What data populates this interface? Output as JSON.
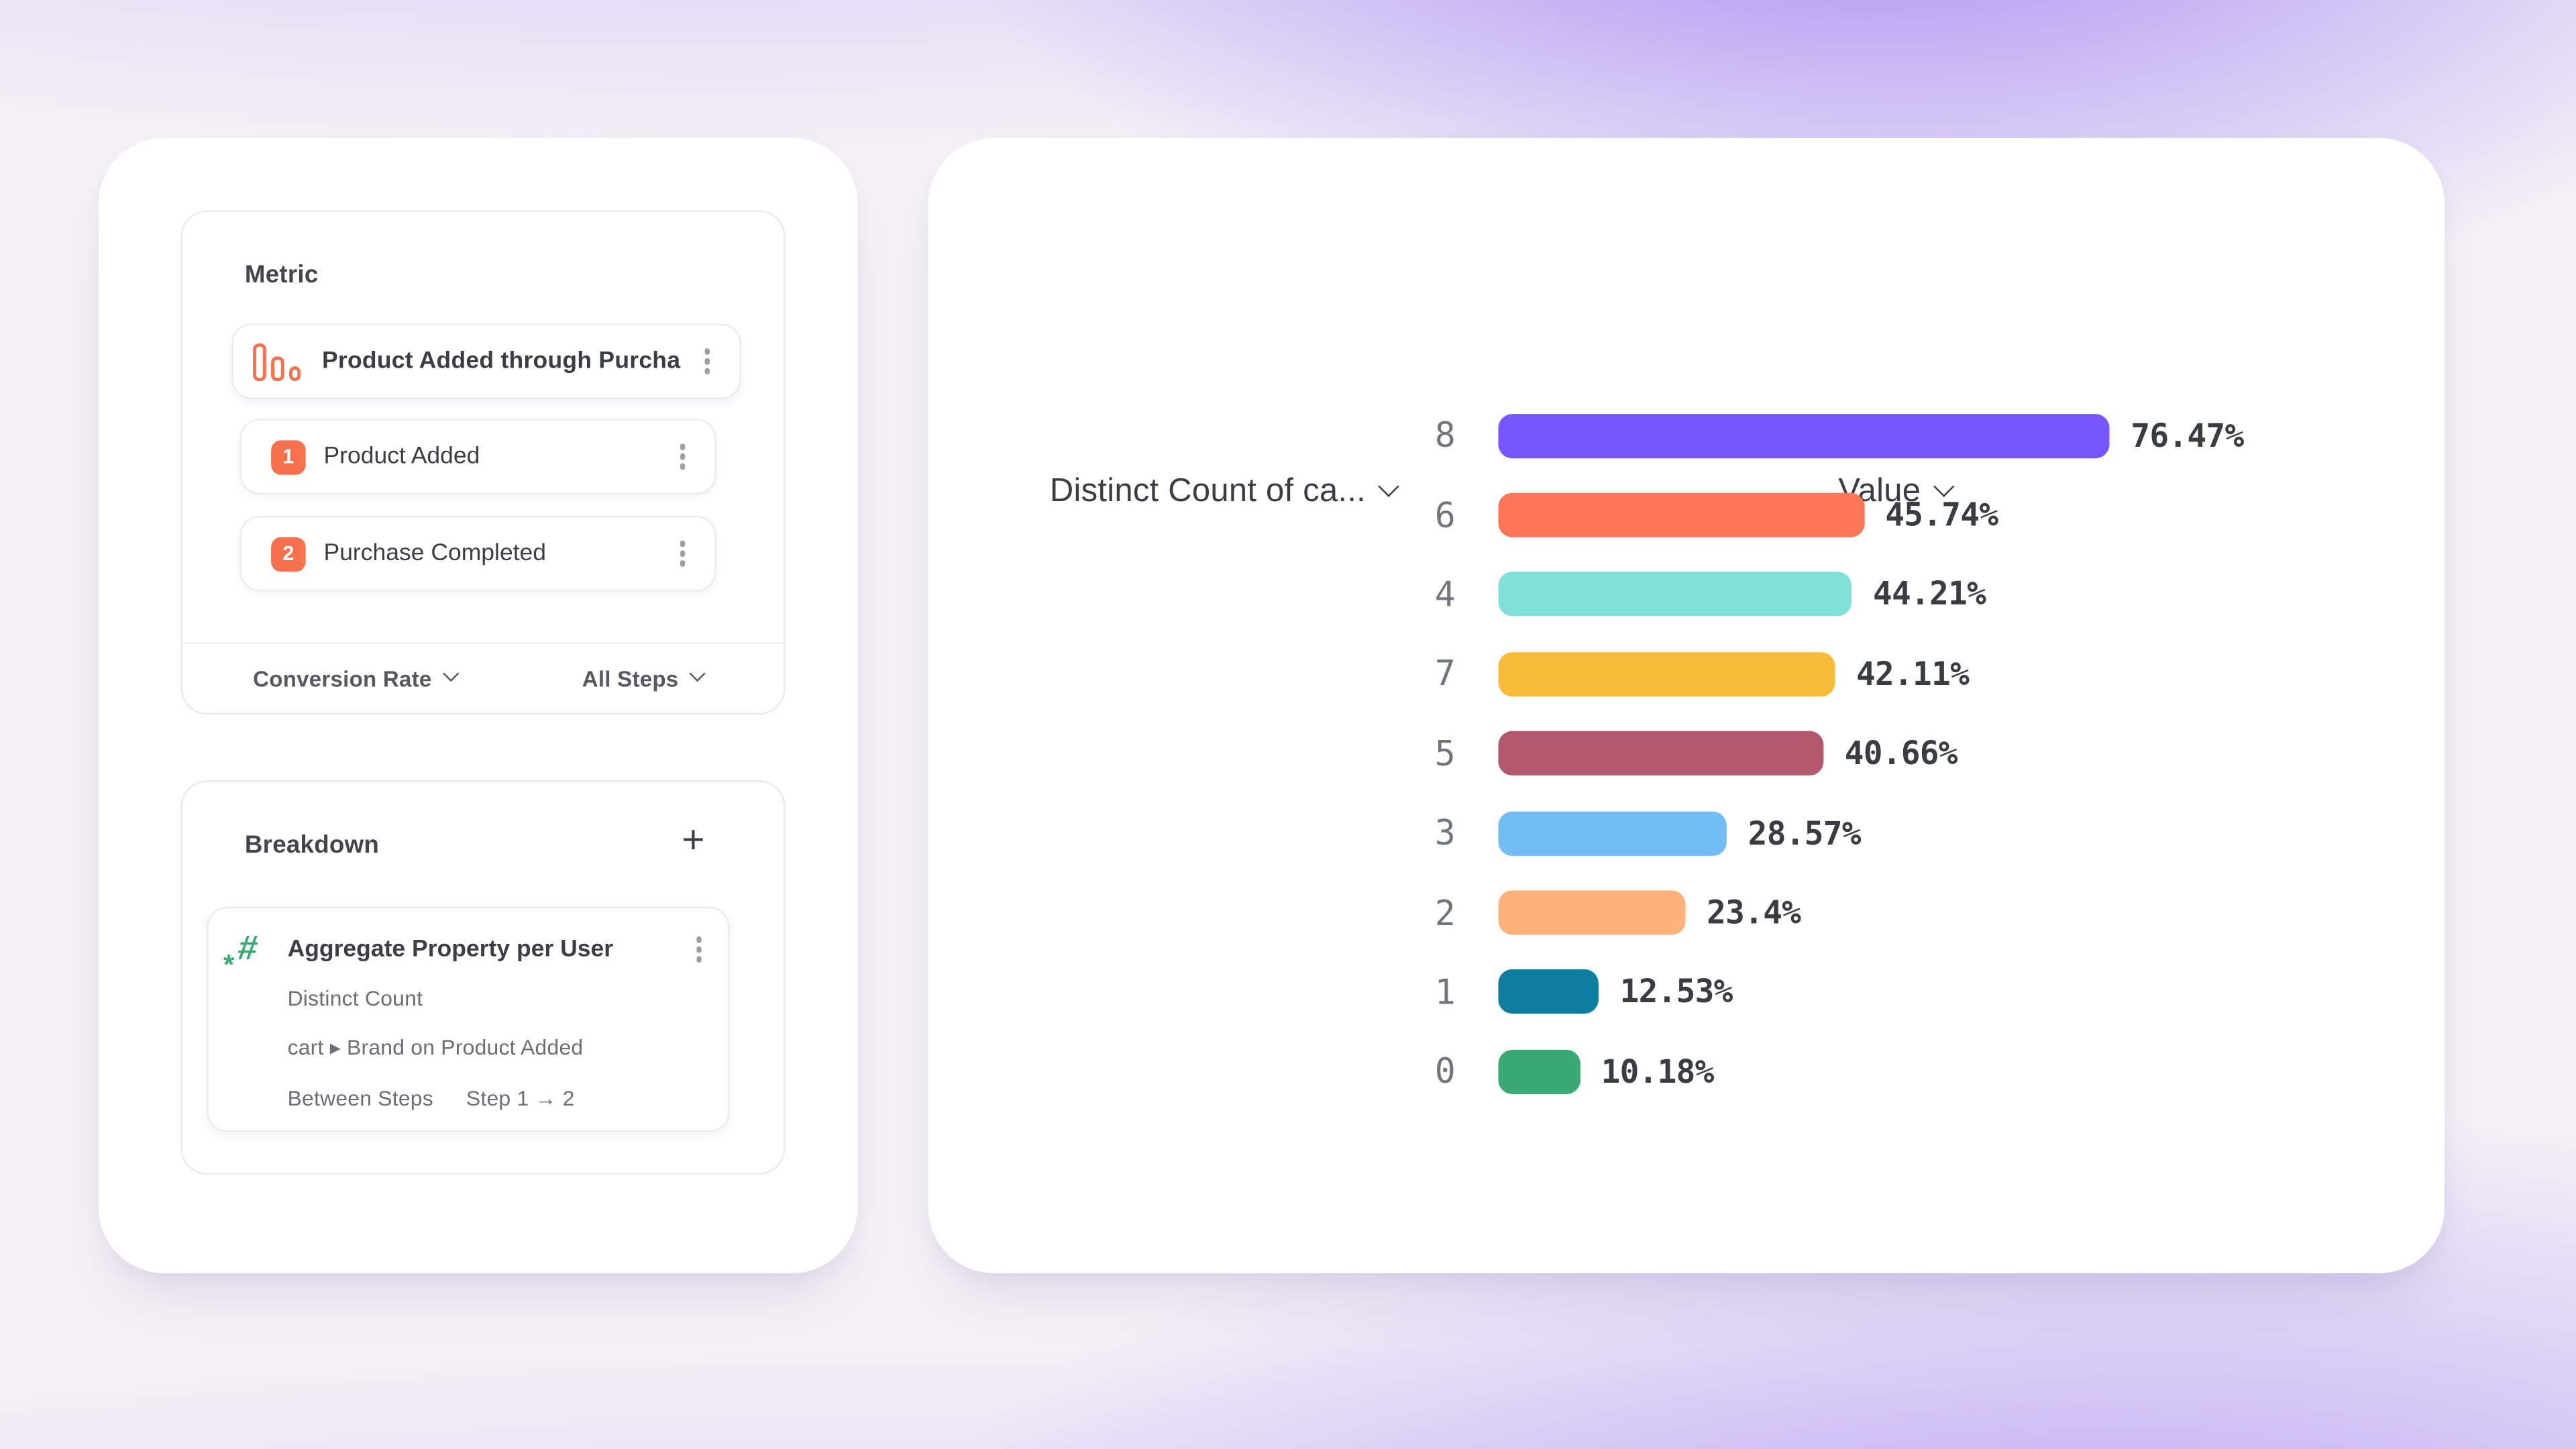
{
  "metric_panel": {
    "title": "Metric",
    "funnel": {
      "name": "Product Added through Purcha...",
      "steps": [
        {
          "index": "1",
          "label": "Product Added"
        },
        {
          "index": "2",
          "label": "Purchase Completed"
        }
      ]
    },
    "footer": {
      "left_label": "Conversion Rate",
      "right_label": "All Steps"
    }
  },
  "breakdown_panel": {
    "title": "Breakdown",
    "add_label": "+",
    "item": {
      "title": "Aggregate Property per User",
      "aggregation": "Distinct Count",
      "property": "cart ▸ Brand on Product Added",
      "between_steps_label": "Between Steps",
      "between_steps_value": "Step 1 → 2"
    }
  },
  "chart_data": {
    "type": "bar",
    "orientation": "horizontal",
    "column_headers": [
      "Distinct Count of ca...",
      "Value"
    ],
    "categories": [
      "8",
      "6",
      "4",
      "7",
      "5",
      "3",
      "2",
      "1",
      "0"
    ],
    "values": [
      76.47,
      45.74,
      44.21,
      42.11,
      40.66,
      28.57,
      23.4,
      12.53,
      10.18
    ],
    "value_labels": [
      "76.47%",
      "45.74%",
      "44.21%",
      "42.11%",
      "40.66%",
      "28.57%",
      "23.4%",
      "12.53%",
      "10.18%"
    ],
    "colors": [
      "#7856FF",
      "#FF7557",
      "#80E1D9",
      "#F8BC3B",
      "#B2596E",
      "#72BEF4",
      "#FFB27A",
      "#0D7EA0",
      "#3BA974"
    ],
    "unit": "%",
    "xlim": [
      0,
      100
    ],
    "grid": false,
    "legend": false
  },
  "icons": {
    "funnel_metric": "bar-chart-icon",
    "step_menu": "kebab-menu-icon",
    "breakdown_add": "plus-icon",
    "numeric_property": "hash-asterisk-icon",
    "dropdown": "chevron-down-icon"
  },
  "colors": {
    "accent_orange": "#F8714F",
    "accent_green": "#3BA974",
    "card_background": "#ffffff",
    "page_purple": "#9a7bee"
  }
}
